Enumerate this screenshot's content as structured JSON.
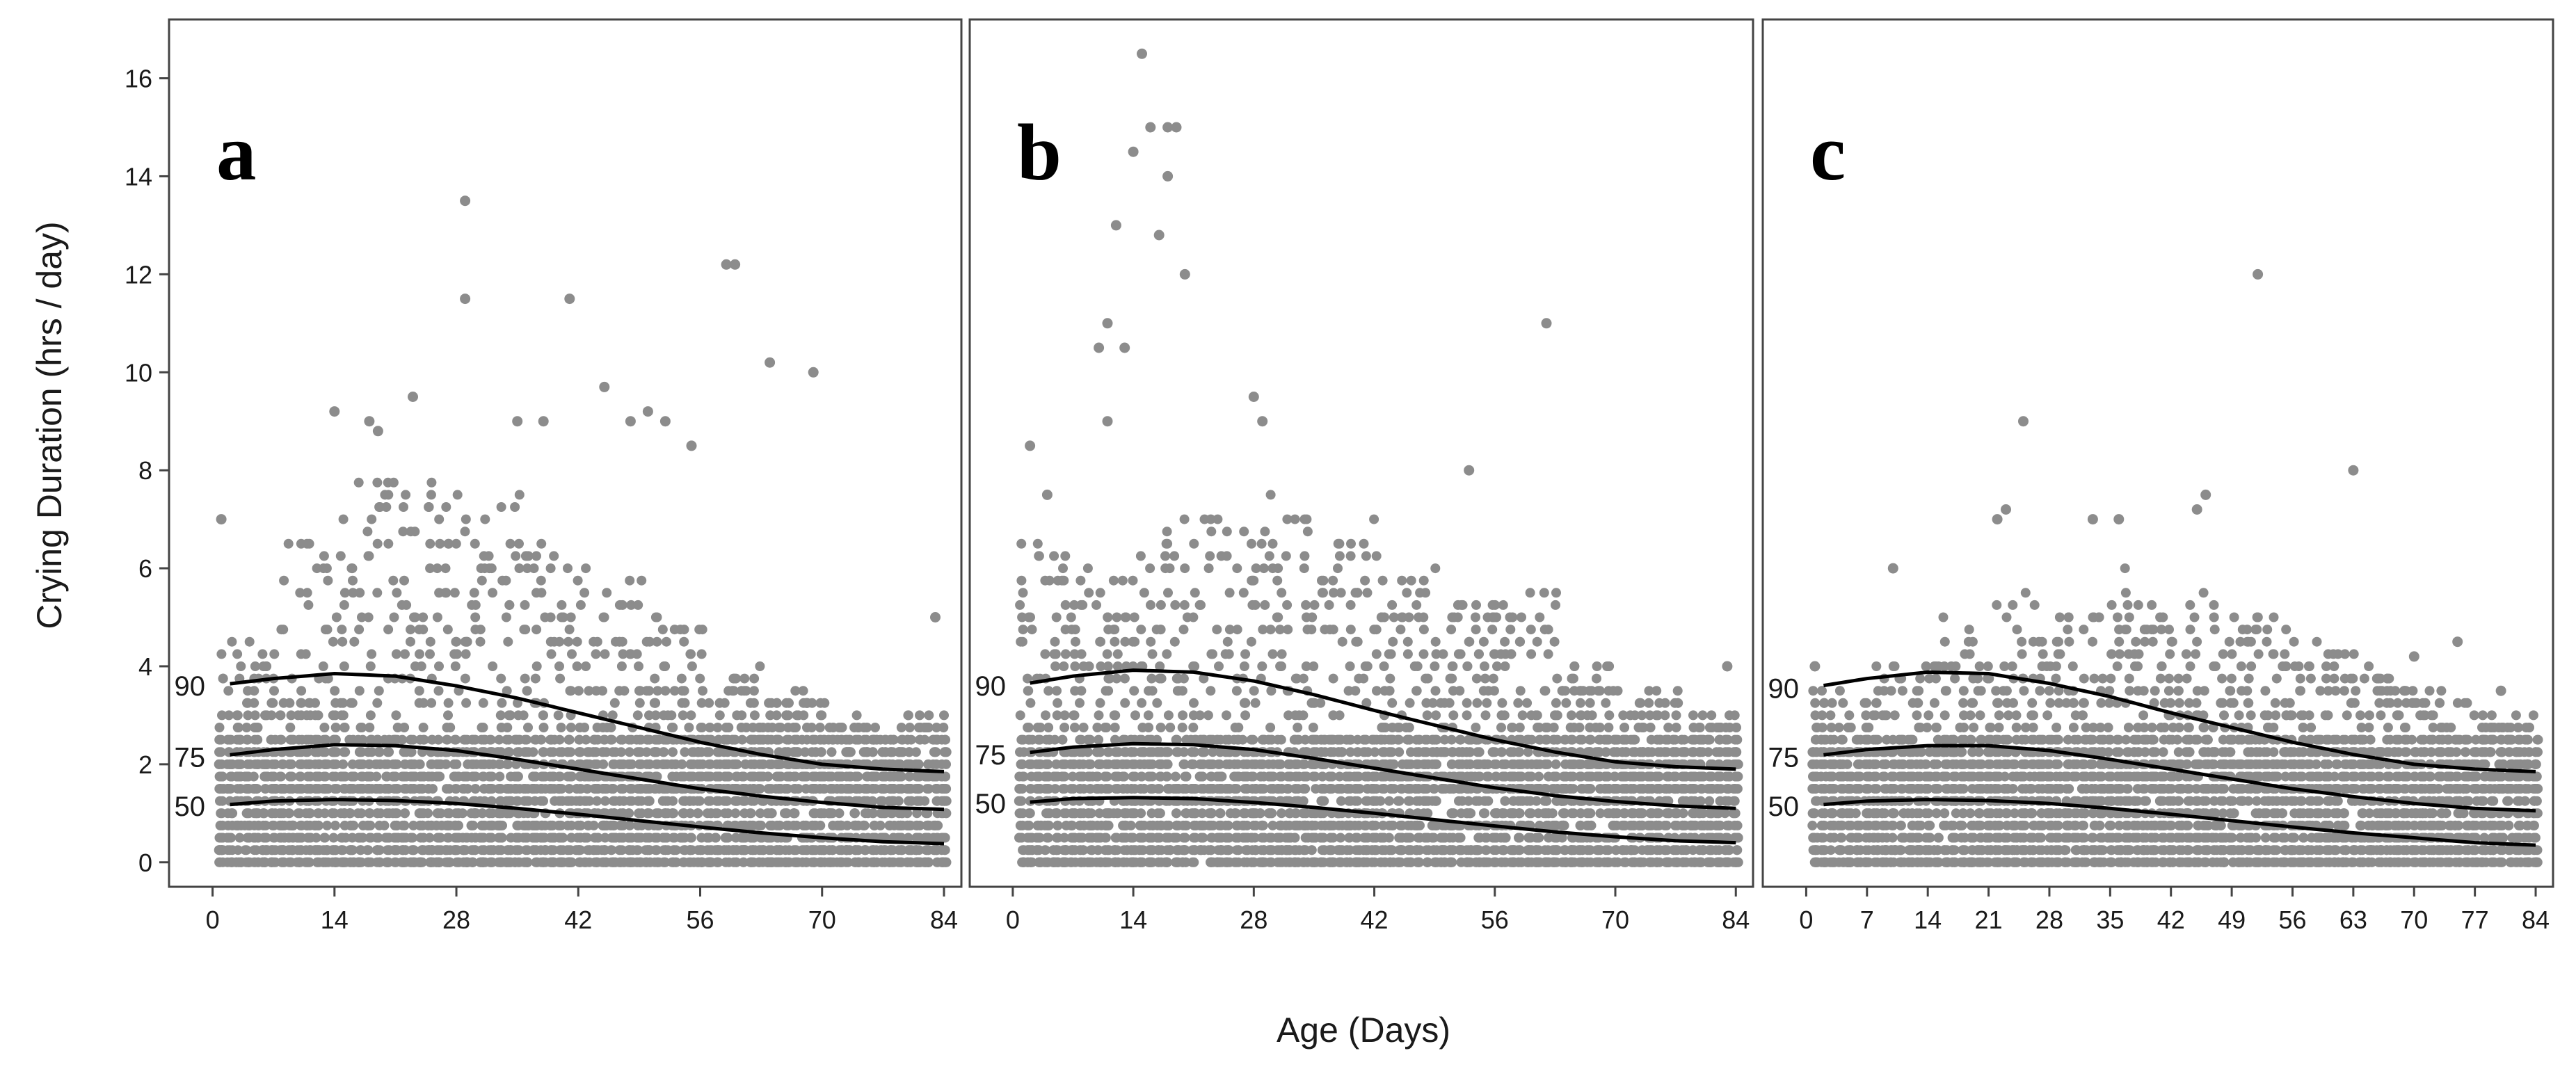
{
  "colors": {
    "points": "#8c8c8c",
    "curves": "#000000",
    "frame": "#444444"
  },
  "x_axis_label": "Age (Days)",
  "chart_data": [
    {
      "type": "scatter",
      "panel_label": "a",
      "title": "",
      "ylabel": "Crying Duration (hrs / day)",
      "xlabel": "Age (Days)",
      "xlim": [
        -5,
        86
      ],
      "ylim": [
        -0.5,
        17.2
      ],
      "xticks": [
        0,
        14,
        28,
        42,
        56,
        70,
        84
      ],
      "yticks": [
        0,
        2,
        4,
        6,
        8,
        10,
        12,
        14,
        16
      ],
      "grid": false,
      "curves": [
        {
          "label": "90",
          "x": [
            0,
            7,
            14,
            21,
            28,
            35,
            42,
            49,
            56,
            63,
            70,
            77,
            84
          ],
          "y": [
            3.6,
            3.75,
            3.85,
            3.8,
            3.6,
            3.35,
            3.05,
            2.75,
            2.45,
            2.2,
            2.0,
            1.9,
            1.85
          ]
        },
        {
          "label": "75",
          "x": [
            0,
            7,
            14,
            21,
            28,
            35,
            42,
            49,
            56,
            63,
            70,
            77,
            84
          ],
          "y": [
            2.15,
            2.3,
            2.4,
            2.38,
            2.28,
            2.1,
            1.9,
            1.7,
            1.5,
            1.35,
            1.22,
            1.12,
            1.08
          ]
        },
        {
          "label": "50",
          "x": [
            0,
            7,
            14,
            21,
            28,
            35,
            42,
            49,
            56,
            63,
            70,
            77,
            84
          ],
          "y": [
            1.15,
            1.25,
            1.28,
            1.26,
            1.2,
            1.1,
            0.98,
            0.85,
            0.72,
            0.6,
            0.5,
            0.42,
            0.38
          ]
        }
      ],
      "outliers": [
        {
          "x": 1,
          "y": 7.0
        },
        {
          "x": 14,
          "y": 9.2
        },
        {
          "x": 18,
          "y": 9.0
        },
        {
          "x": 19,
          "y": 8.8
        },
        {
          "x": 23,
          "y": 9.5
        },
        {
          "x": 29,
          "y": 13.5
        },
        {
          "x": 29,
          "y": 11.5
        },
        {
          "x": 35,
          "y": 9.0
        },
        {
          "x": 38,
          "y": 9.0
        },
        {
          "x": 41,
          "y": 11.5
        },
        {
          "x": 45,
          "y": 9.7
        },
        {
          "x": 48,
          "y": 9.0
        },
        {
          "x": 50,
          "y": 9.2
        },
        {
          "x": 52,
          "y": 9.0
        },
        {
          "x": 55,
          "y": 8.5
        },
        {
          "x": 59,
          "y": 12.2
        },
        {
          "x": 60,
          "y": 12.2
        },
        {
          "x": 64,
          "y": 10.2
        },
        {
          "x": 69,
          "y": 10.0
        },
        {
          "x": 83,
          "y": 5.0
        }
      ],
      "density": {
        "x_range": [
          1,
          84
        ],
        "max_y": [
          4.5,
          6.5,
          8.0,
          8.0,
          7.5,
          6.5,
          6.0,
          5.0,
          4.0,
          3.5,
          3.0,
          3.0
        ]
      }
    },
    {
      "type": "scatter",
      "panel_label": "b",
      "title": "",
      "ylabel": "",
      "xlabel": "Age (Days)",
      "xlim": [
        -5,
        86
      ],
      "ylim": [
        -0.5,
        17.2
      ],
      "xticks": [
        0,
        14,
        28,
        42,
        56,
        70,
        84
      ],
      "yticks": [
        0,
        2,
        4,
        6,
        8,
        10,
        12,
        14,
        16
      ],
      "grid": false,
      "curves": [
        {
          "label": "90",
          "x": [
            0,
            7,
            14,
            21,
            28,
            35,
            42,
            49,
            56,
            63,
            70,
            77,
            84
          ],
          "y": [
            3.6,
            3.8,
            3.92,
            3.88,
            3.7,
            3.42,
            3.1,
            2.8,
            2.5,
            2.25,
            2.05,
            1.95,
            1.9
          ]
        },
        {
          "label": "75",
          "x": [
            0,
            7,
            14,
            21,
            28,
            35,
            42,
            49,
            56,
            63,
            70,
            77,
            84
          ],
          "y": [
            2.2,
            2.35,
            2.42,
            2.4,
            2.3,
            2.12,
            1.92,
            1.72,
            1.52,
            1.36,
            1.24,
            1.15,
            1.1
          ]
        },
        {
          "label": "50",
          "x": [
            0,
            7,
            14,
            21,
            28,
            35,
            42,
            49,
            56,
            63,
            70,
            77,
            84
          ],
          "y": [
            1.2,
            1.3,
            1.32,
            1.3,
            1.22,
            1.12,
            1.0,
            0.87,
            0.74,
            0.62,
            0.52,
            0.44,
            0.4
          ]
        }
      ],
      "outliers": [
        {
          "x": 2,
          "y": 8.5
        },
        {
          "x": 4,
          "y": 7.5
        },
        {
          "x": 10,
          "y": 10.5
        },
        {
          "x": 11,
          "y": 11.0
        },
        {
          "x": 11,
          "y": 9.0
        },
        {
          "x": 12,
          "y": 13.0
        },
        {
          "x": 13,
          "y": 10.5
        },
        {
          "x": 14,
          "y": 14.5
        },
        {
          "x": 15,
          "y": 16.5
        },
        {
          "x": 16,
          "y": 15.0
        },
        {
          "x": 17,
          "y": 12.8
        },
        {
          "x": 18,
          "y": 15.0
        },
        {
          "x": 18,
          "y": 14.0
        },
        {
          "x": 19,
          "y": 15.0
        },
        {
          "x": 20,
          "y": 12.0
        },
        {
          "x": 28,
          "y": 9.5
        },
        {
          "x": 29,
          "y": 9.0
        },
        {
          "x": 53,
          "y": 8.0
        },
        {
          "x": 62,
          "y": 11.0
        },
        {
          "x": 83,
          "y": 4.0
        }
      ],
      "density": {
        "x_range": [
          1,
          84
        ],
        "max_y": [
          6.5,
          6.0,
          7.0,
          7.0,
          7.5,
          7.0,
          6.0,
          5.5,
          5.5,
          4.0,
          3.5,
          3.0
        ]
      }
    },
    {
      "type": "scatter",
      "panel_label": "c",
      "title": "",
      "ylabel": "",
      "xlabel": "Age (Days)",
      "xlim": [
        -5,
        86
      ],
      "ylim": [
        -0.5,
        17.2
      ],
      "xticks": [
        0,
        7,
        14,
        21,
        28,
        35,
        42,
        49,
        56,
        63,
        70,
        77,
        84
      ],
      "yticks": [
        0,
        2,
        4,
        6,
        8,
        10,
        12,
        14,
        16
      ],
      "grid": false,
      "curves": [
        {
          "label": "90",
          "x": [
            0,
            7,
            14,
            21,
            28,
            35,
            42,
            49,
            56,
            63,
            70,
            77,
            84
          ],
          "y": [
            3.55,
            3.75,
            3.88,
            3.85,
            3.65,
            3.38,
            3.05,
            2.75,
            2.45,
            2.2,
            2.0,
            1.9,
            1.85
          ]
        },
        {
          "label": "75",
          "x": [
            0,
            7,
            14,
            21,
            28,
            35,
            42,
            49,
            56,
            63,
            70,
            77,
            84
          ],
          "y": [
            2.15,
            2.3,
            2.38,
            2.38,
            2.28,
            2.1,
            1.9,
            1.7,
            1.5,
            1.34,
            1.2,
            1.1,
            1.05
          ]
        },
        {
          "label": "50",
          "x": [
            0,
            7,
            14,
            21,
            28,
            35,
            42,
            49,
            56,
            63,
            70,
            77,
            84
          ],
          "y": [
            1.15,
            1.25,
            1.28,
            1.26,
            1.2,
            1.1,
            0.98,
            0.85,
            0.72,
            0.6,
            0.5,
            0.4,
            0.35
          ]
        }
      ],
      "outliers": [
        {
          "x": 1,
          "y": 4.0
        },
        {
          "x": 10,
          "y": 6.0
        },
        {
          "x": 22,
          "y": 7.0
        },
        {
          "x": 23,
          "y": 7.2
        },
        {
          "x": 25,
          "y": 9.0
        },
        {
          "x": 33,
          "y": 7.0
        },
        {
          "x": 36,
          "y": 7.0
        },
        {
          "x": 45,
          "y": 7.2
        },
        {
          "x": 46,
          "y": 7.5
        },
        {
          "x": 52,
          "y": 12.0
        },
        {
          "x": 63,
          "y": 8.0
        },
        {
          "x": 70,
          "y": 4.2
        },
        {
          "x": 75,
          "y": 4.5
        },
        {
          "x": 80,
          "y": 3.5
        }
      ],
      "density": {
        "x_range": [
          1,
          84
        ],
        "max_y": [
          3.5,
          4.0,
          5.0,
          5.5,
          5.5,
          6.0,
          5.5,
          5.0,
          4.5,
          4.0,
          3.5,
          3.0
        ]
      }
    }
  ]
}
